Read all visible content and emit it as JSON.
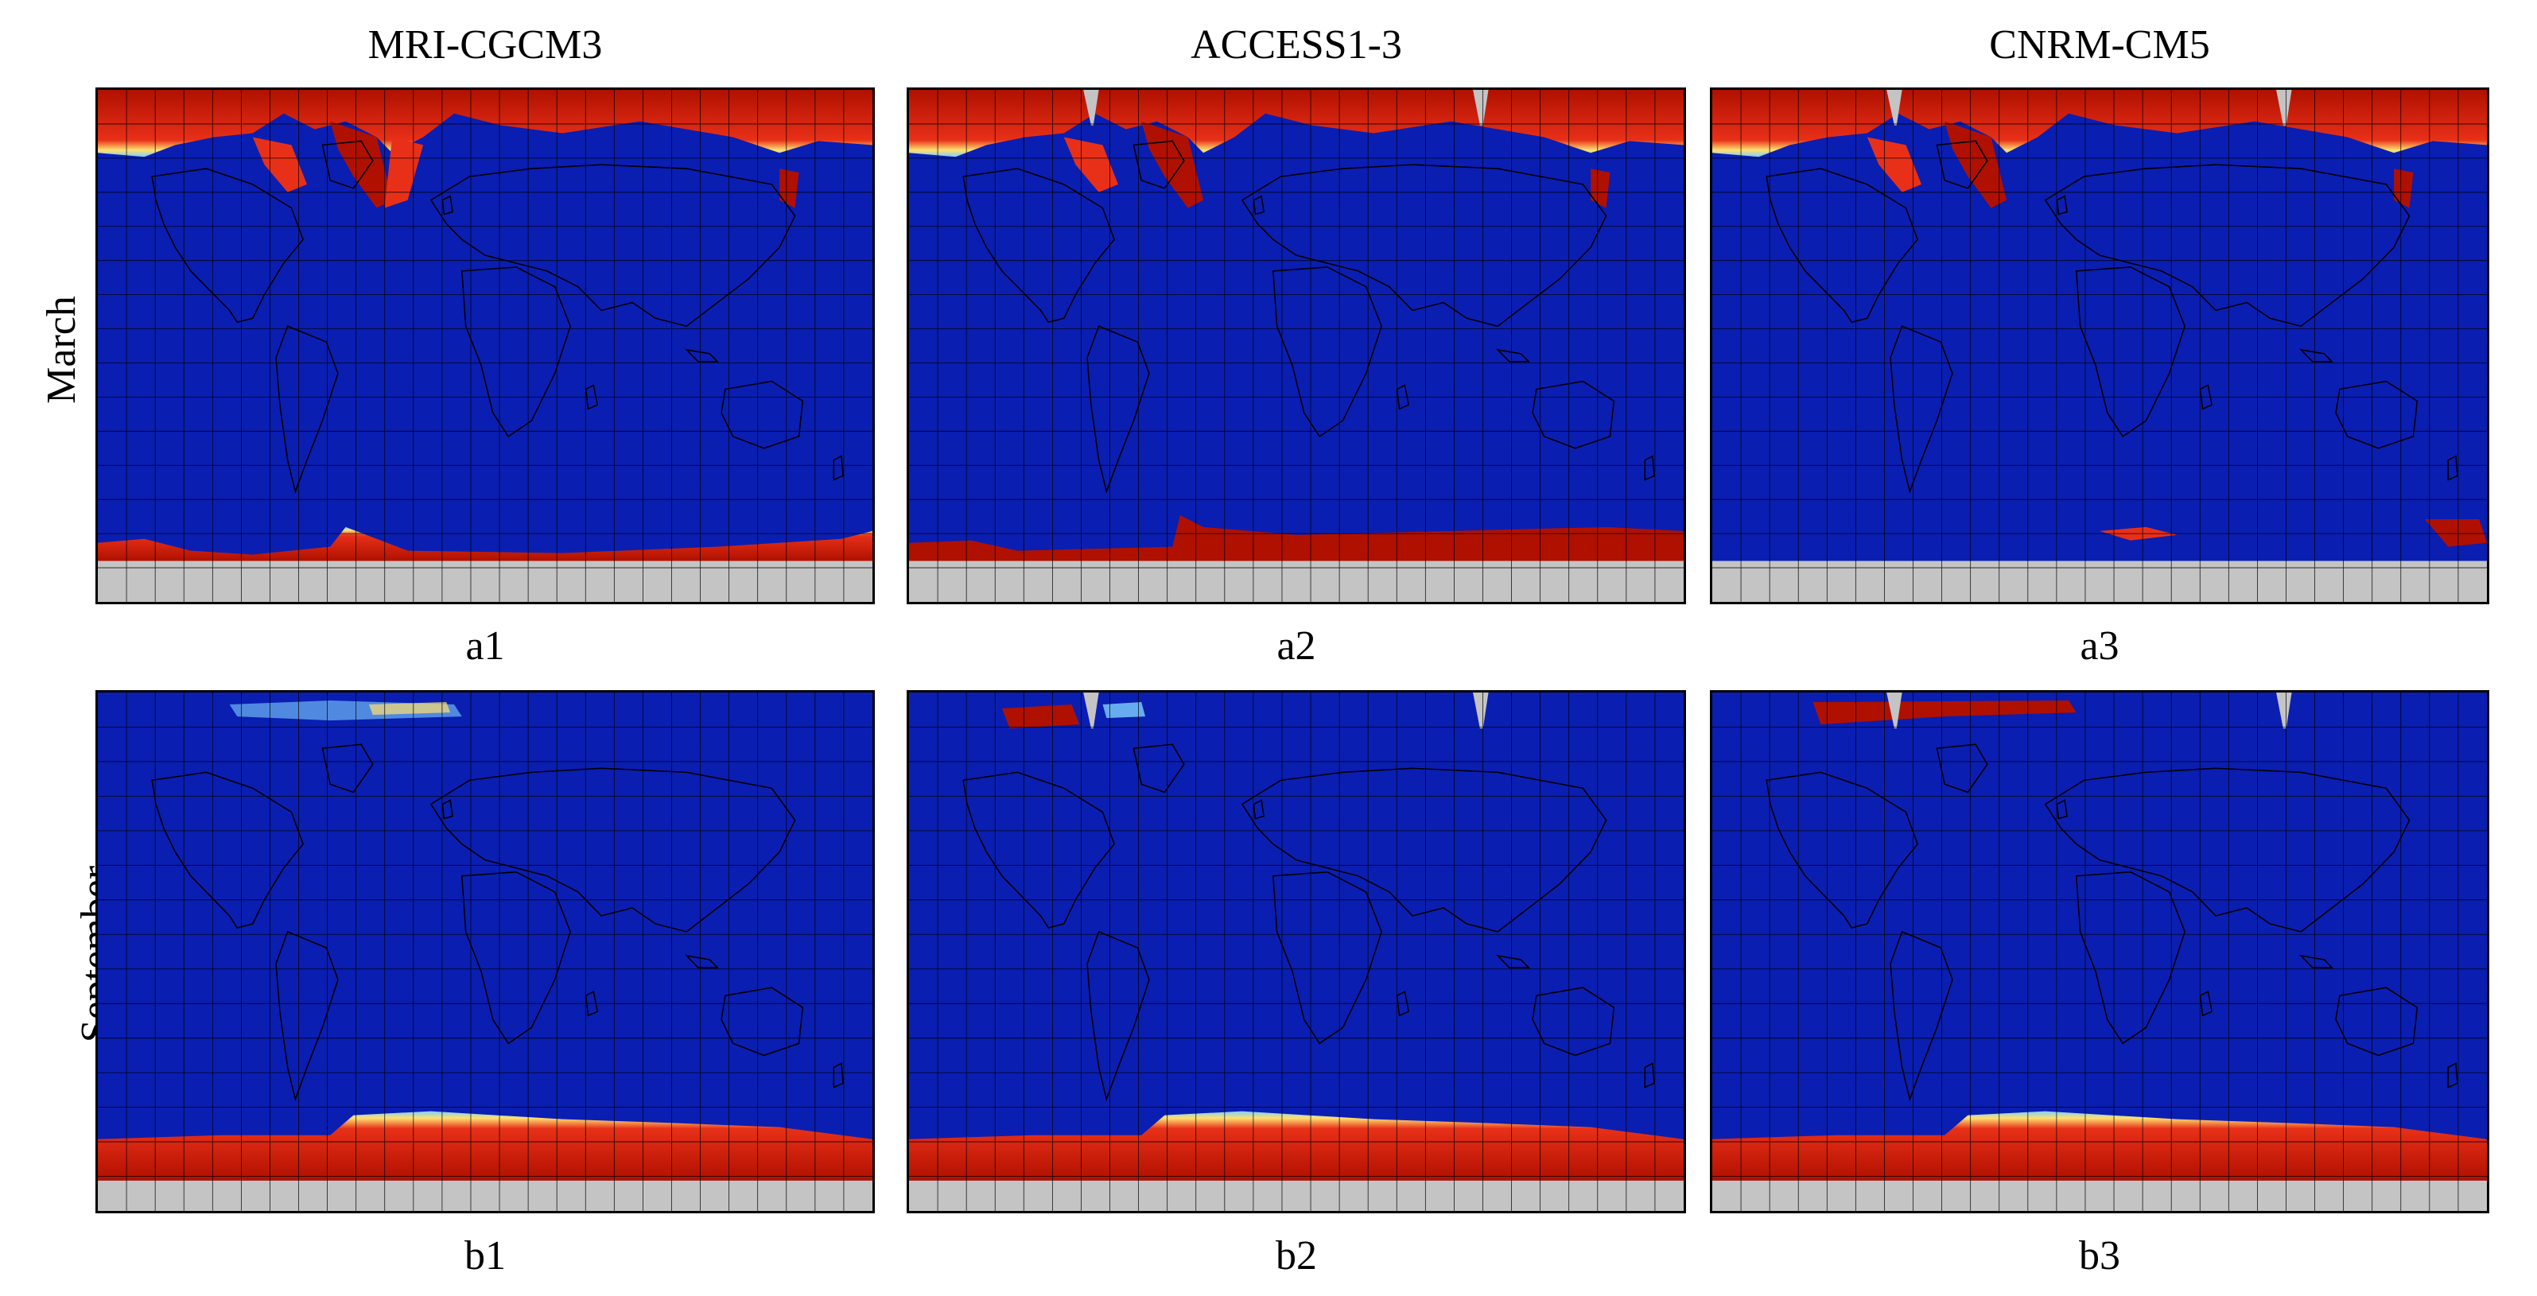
{
  "columns": [
    "MRI-CGCM3",
    "ACCESS1-3",
    "CNRM-CM5"
  ],
  "rows": [
    "March",
    "September"
  ],
  "panels": [
    {
      "label": "a1",
      "model": "MRI-CGCM3",
      "month": "March"
    },
    {
      "label": "a2",
      "model": "ACCESS1-3",
      "month": "March"
    },
    {
      "label": "a3",
      "model": "CNRM-CM5",
      "month": "March"
    },
    {
      "label": "b1",
      "model": "MRI-CGCM3",
      "month": "September"
    },
    {
      "label": "b2",
      "model": "ACCESS1-3",
      "month": "September"
    },
    {
      "label": "b3",
      "model": "CNRM-CM5",
      "month": "September"
    }
  ],
  "colors": {
    "ocean": "#0a1eb2",
    "ice_high": "#b01000",
    "ice_mid": "#e83018",
    "ice_edge": "#ffe070",
    "ice_low": "#7fd0ff",
    "masked": "#c4c4c4",
    "coast": "#000000",
    "grid": "#000000"
  }
}
